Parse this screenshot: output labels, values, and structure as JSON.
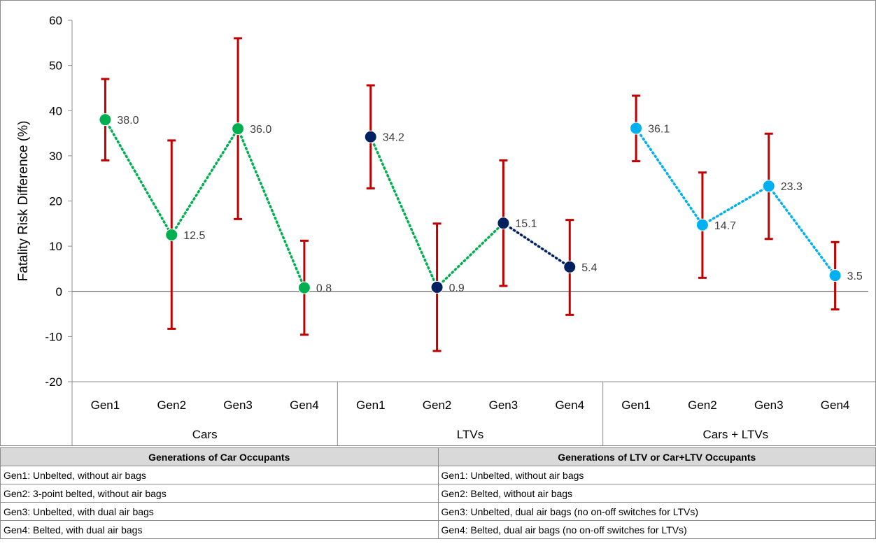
{
  "chart_data": {
    "type": "line",
    "ylabel": "Fatality Risk Difference (%)",
    "ylim": [
      -20,
      60
    ],
    "yticks": [
      "60",
      "50",
      "40",
      "30",
      "20",
      "10",
      "0",
      "-10",
      "-20"
    ],
    "ytick_values": [
      60,
      50,
      40,
      30,
      20,
      10,
      0,
      -10,
      -20
    ],
    "grid": false,
    "groups": [
      {
        "name": "Cars",
        "categories": [
          "Gen1",
          "Gen2",
          "Gen3",
          "Gen4"
        ],
        "values": [
          38.0,
          12.5,
          36.0,
          0.8
        ],
        "labels": [
          "38.0",
          "12.5",
          "36.0",
          "0.8"
        ],
        "error_low": [
          29,
          -8.3,
          16,
          -9.6
        ],
        "error_high": [
          47,
          33.4,
          56,
          11.2
        ],
        "marker_color": "#00b050",
        "line_colors": [
          "#00b050",
          "#00b050",
          "#00b050"
        ]
      },
      {
        "name": "LTVs",
        "categories": [
          "Gen1",
          "Gen2",
          "Gen3",
          "Gen4"
        ],
        "values": [
          34.2,
          0.9,
          15.1,
          5.4
        ],
        "labels": [
          "34.2",
          "0.9",
          "15.1",
          "5.4"
        ],
        "error_low": [
          22.8,
          -13.2,
          1.2,
          -5.2
        ],
        "error_high": [
          45.6,
          15.0,
          29.0,
          15.8
        ],
        "marker_color": "#002060",
        "line_colors": [
          "#00b050",
          "#00b050",
          "#002060"
        ]
      },
      {
        "name": "Cars + LTVs",
        "categories": [
          "Gen1",
          "Gen2",
          "Gen3",
          "Gen4"
        ],
        "values": [
          36.1,
          14.7,
          23.3,
          3.5
        ],
        "labels": [
          "36.1",
          "14.7",
          "23.3",
          "3.5"
        ],
        "error_low": [
          28.8,
          3.0,
          11.6,
          -4.0
        ],
        "error_high": [
          43.3,
          26.3,
          34.9,
          10.9
        ],
        "marker_color": "#00b0f0",
        "line_colors": [
          "#00b0f0",
          "#00b0f0",
          "#00b0f0"
        ]
      }
    ],
    "error_bar_color": "#c00000",
    "zero_line_color": "#808080"
  },
  "table": {
    "headers": [
      "Generations of Car Occupants",
      "Generations of LTV or Car+LTV Occupants"
    ],
    "rows": [
      [
        "Gen1: Unbelted, without air bags",
        "Gen1: Unbelted, without air bags"
      ],
      [
        "Gen2: 3-point belted, without air bags",
        "Gen2: Belted, without air bags"
      ],
      [
        "Gen3: Unbelted, with dual air bags",
        "Gen3: Unbelted, dual air bags (no on-off switches for LTVs)"
      ],
      [
        "Gen4: Belted, with dual air bags",
        "Gen4: Belted, dual air bags (no on-off switches for LTVs)"
      ]
    ]
  }
}
